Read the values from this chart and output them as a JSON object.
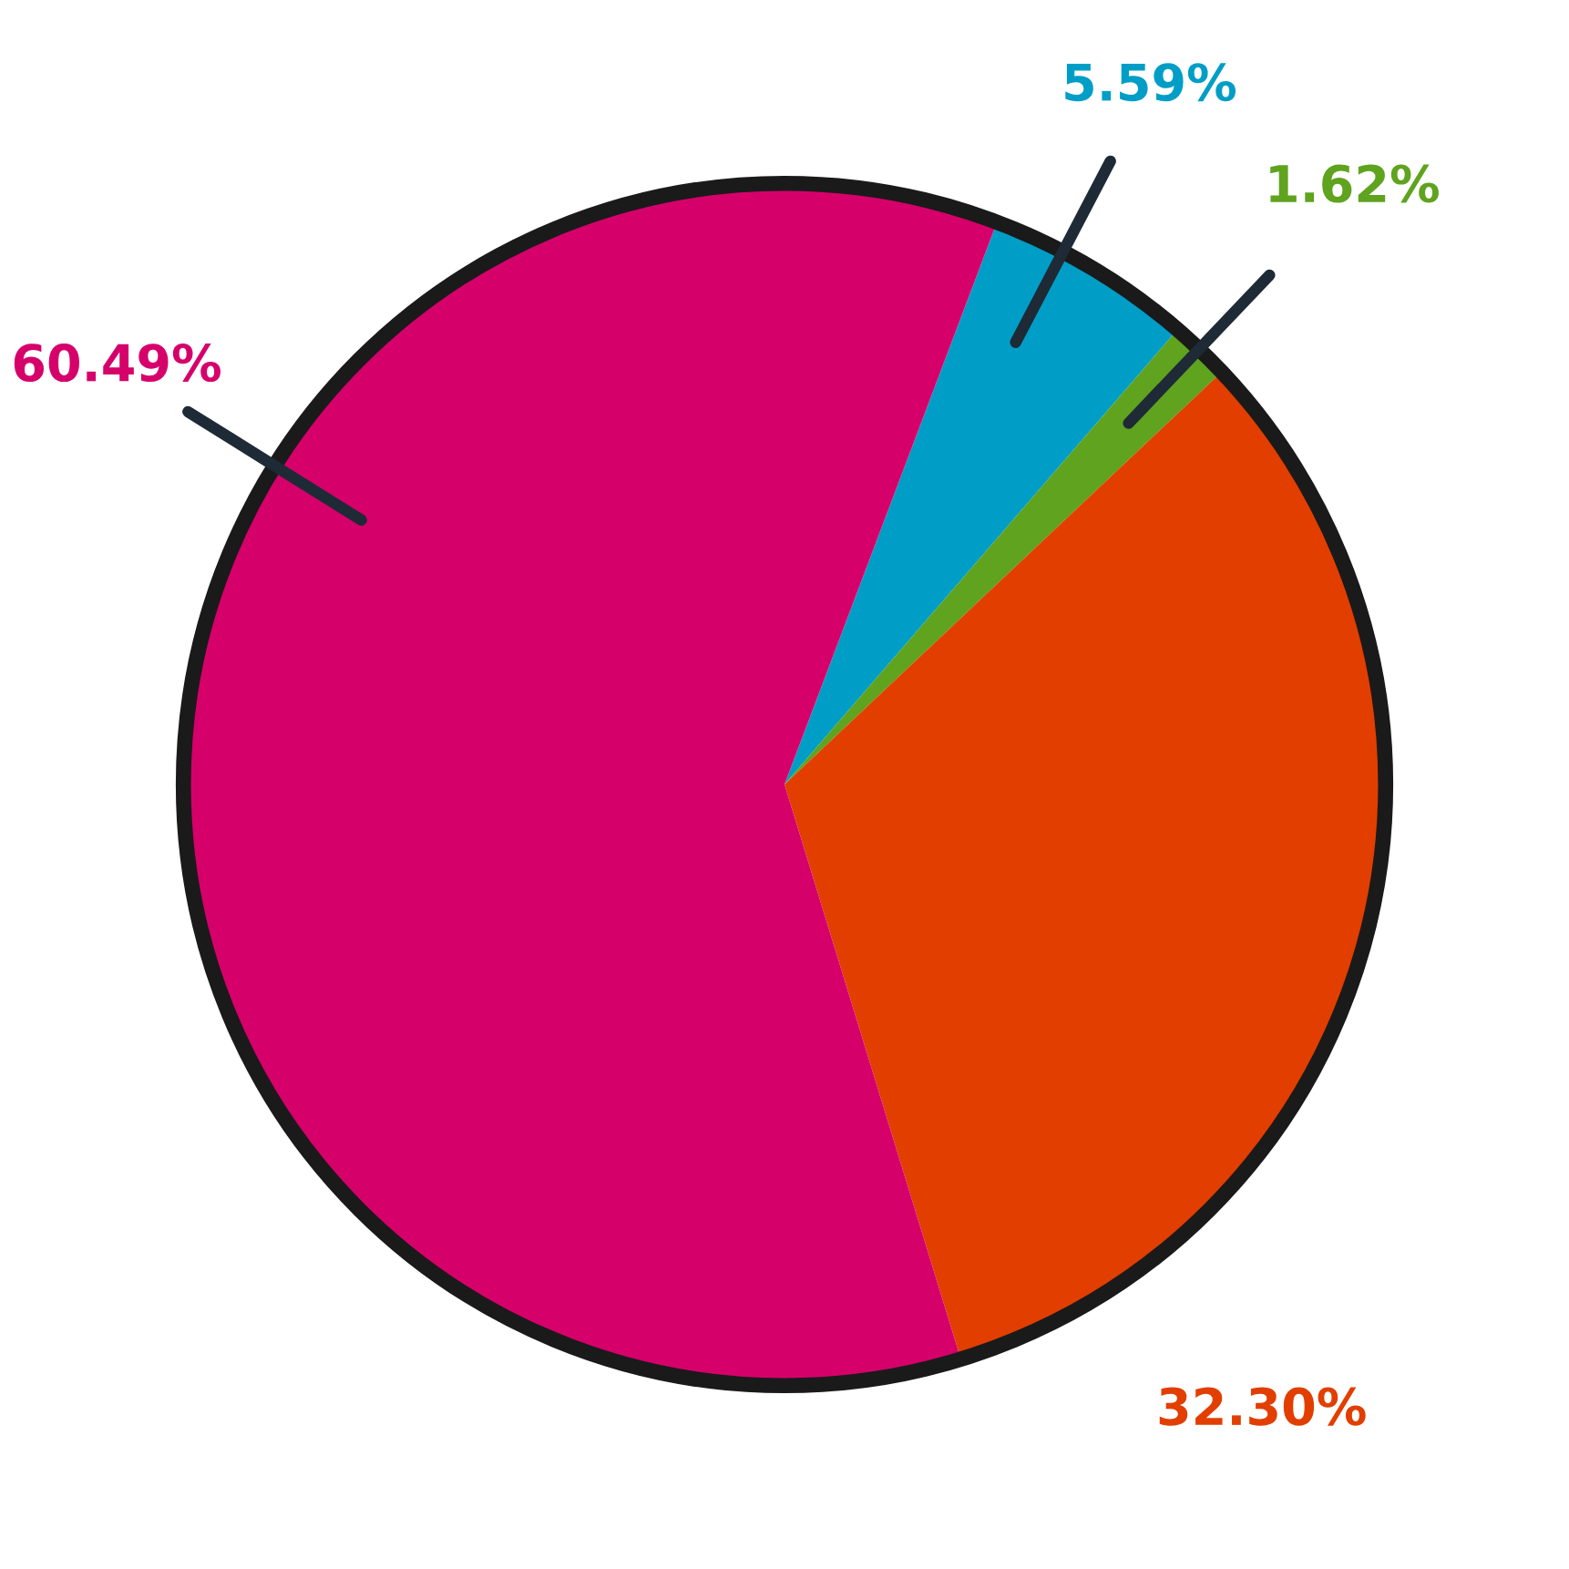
{
  "chart_data": {
    "type": "pie",
    "categories": [
      null,
      null,
      null,
      null
    ],
    "values": [
      5.59,
      1.62,
      32.3,
      60.49
    ],
    "colors": [
      "#009ec6",
      "#5fa31e",
      "#e23e00",
      "#d6006b"
    ],
    "value_labels": [
      "5.59%",
      "1.62%",
      "32.30%",
      "60.49%"
    ],
    "legend": false
  }
}
